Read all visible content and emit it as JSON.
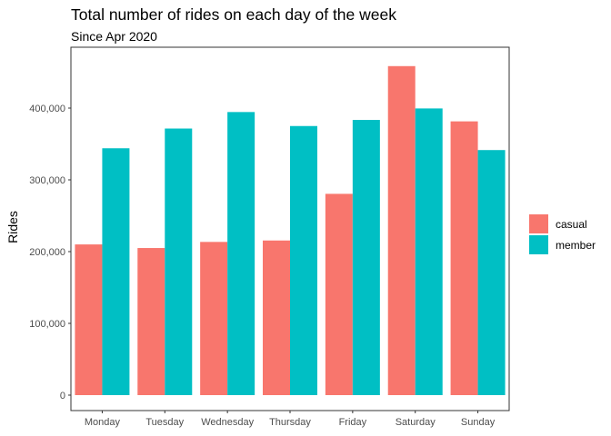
{
  "chart_data": {
    "type": "bar",
    "title": "Total number of rides on each day of the week",
    "subtitle": "Since Apr 2020",
    "xlabel": "",
    "ylabel": "Rides",
    "categories": [
      "Monday",
      "Tuesday",
      "Wednesday",
      "Thursday",
      "Friday",
      "Saturday",
      "Sunday"
    ],
    "series": [
      {
        "name": "casual",
        "color": "#F8766D",
        "values": [
          210000,
          205000,
          213500,
          215500,
          280500,
          458500,
          381500
        ]
      },
      {
        "name": "member",
        "color": "#00BFC4",
        "values": [
          344000,
          371500,
          394500,
          375000,
          383500,
          399500,
          341500
        ]
      }
    ],
    "ylim": [
      0,
      480000
    ],
    "yticks": [
      0,
      100000,
      200000,
      300000,
      400000
    ],
    "ytick_labels": [
      "0",
      "100,000",
      "200,000",
      "300,000",
      "400,000"
    ],
    "grid": false,
    "legend_position": "right"
  }
}
